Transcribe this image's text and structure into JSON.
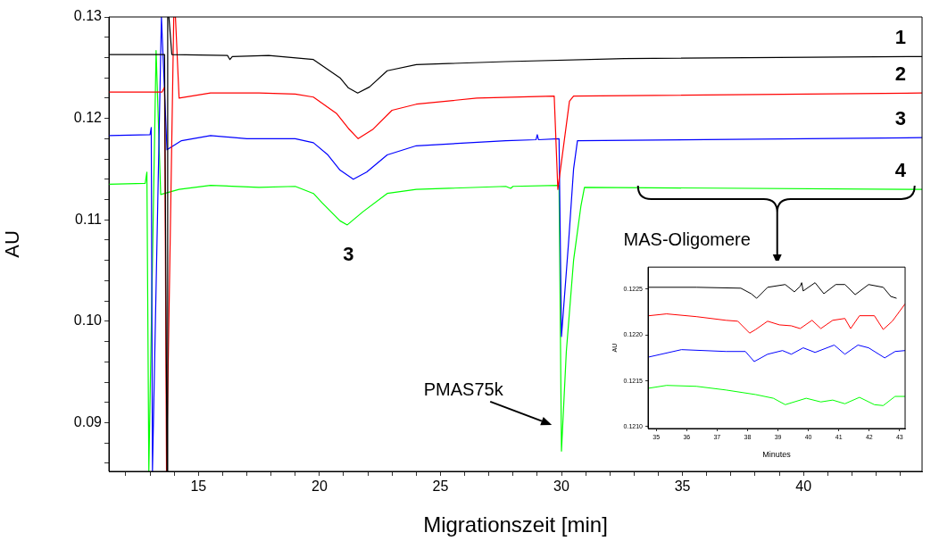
{
  "chart_data": [
    {
      "type": "line",
      "xlabel": "Migrationszeit [min]",
      "ylabel": "AU",
      "xlim": [
        11.3,
        44.9
      ],
      "ylim": [
        0.0852,
        0.13
      ],
      "grid": false,
      "marker": "none",
      "xticks": [
        {
          "value": 12,
          "label": null
        },
        {
          "value": 13,
          "label": null
        },
        {
          "value": 14,
          "label": null
        },
        15,
        {
          "value": 16,
          "label": null
        },
        {
          "value": 17,
          "label": null
        },
        {
          "value": 18,
          "label": null
        },
        {
          "value": 19,
          "label": null
        },
        20,
        {
          "value": 21,
          "label": null
        },
        {
          "value": 22,
          "label": null
        },
        {
          "value": 23,
          "label": null
        },
        {
          "value": 24,
          "label": null
        },
        25,
        {
          "value": 26,
          "label": null
        },
        {
          "value": 27,
          "label": null
        },
        {
          "value": 28,
          "label": null
        },
        {
          "value": 29,
          "label": null
        },
        30,
        {
          "value": 31,
          "label": null
        },
        {
          "value": 32,
          "label": null
        },
        {
          "value": 33,
          "label": null
        },
        {
          "value": 34,
          "label": null
        },
        35,
        {
          "value": 36,
          "label": null
        },
        {
          "value": 37,
          "label": null
        },
        {
          "value": 38,
          "label": null
        },
        {
          "value": 39,
          "label": null
        },
        40,
        {
          "value": 41,
          "label": null
        },
        {
          "value": 42,
          "label": null
        },
        {
          "value": 43,
          "label": null
        },
        {
          "value": 44,
          "label": null
        }
      ],
      "yticks": [
        {
          "value": 0.086,
          "label": null
        },
        {
          "value": 0.088,
          "label": null
        },
        0.09,
        {
          "value": 0.092,
          "label": null
        },
        {
          "value": 0.094,
          "label": null
        },
        {
          "value": 0.096,
          "label": null
        },
        {
          "value": 0.098,
          "label": null
        },
        {
          "value": 0.1,
          "label": "0.10"
        },
        {
          "value": 0.102,
          "label": null
        },
        {
          "value": 0.104,
          "label": null
        },
        {
          "value": 0.106,
          "label": null
        },
        {
          "value": 0.108,
          "label": null
        },
        0.11,
        {
          "value": 0.112,
          "label": null
        },
        {
          "value": 0.114,
          "label": null
        },
        {
          "value": 0.116,
          "label": null
        },
        {
          "value": 0.118,
          "label": null
        },
        0.12,
        {
          "value": 0.122,
          "label": null
        },
        {
          "value": 0.124,
          "label": null
        },
        {
          "value": 0.126,
          "label": null
        },
        {
          "value": 0.128,
          "label": null
        },
        0.13
      ],
      "series": [
        {
          "name": "1",
          "color": "#000000",
          "x": [
            11.3,
            13.6,
            13.7,
            13.73,
            13.78,
            13.9,
            16.2,
            16.3,
            16.4,
            17.9,
            19.75,
            20.85,
            21.2,
            21.58,
            22.07,
            22.8,
            24.0,
            27.7,
            32.6,
            44.9
          ],
          "values": [
            0.1263,
            0.1263,
            0.0852,
            0.13,
            0.13,
            0.1263,
            0.1262,
            0.1258,
            0.1261,
            0.1262,
            0.1258,
            0.124,
            0.123,
            0.1225,
            0.1231,
            0.1247,
            0.1253,
            0.1256,
            0.1259,
            0.1261
          ]
        },
        {
          "name": "2",
          "color": "#ff0000",
          "x": [
            11.3,
            13.5,
            13.6,
            13.68,
            13.98,
            14.05,
            14.2,
            15.5,
            17.5,
            19.0,
            19.75,
            20.7,
            21.2,
            21.6,
            22.2,
            23.0,
            24.0,
            26.5,
            29.7,
            29.85,
            30.33,
            30.5,
            44.9
          ],
          "values": [
            0.1226,
            0.1226,
            0.1231,
            0.0852,
            0.13,
            0.13,
            0.122,
            0.1225,
            0.1225,
            0.1224,
            0.1221,
            0.1205,
            0.119,
            0.118,
            0.1189,
            0.1208,
            0.1214,
            0.122,
            0.1222,
            0.113,
            0.1217,
            0.1222,
            0.1225
          ]
        },
        {
          "name": "3",
          "color": "#0000ff",
          "x": [
            11.3,
            13.0,
            13.05,
            13.1,
            13.47,
            13.7,
            14.3,
            15.5,
            17.0,
            19.0,
            19.75,
            20.35,
            20.85,
            21.4,
            21.95,
            22.8,
            24.0,
            27.7,
            28.95,
            29.0,
            29.05,
            29.9,
            30.0,
            30.3,
            30.5,
            30.66,
            44.9
          ],
          "values": [
            0.1183,
            0.1184,
            0.1191,
            0.0852,
            0.13,
            0.1169,
            0.1178,
            0.1183,
            0.118,
            0.118,
            0.1176,
            0.1164,
            0.1149,
            0.114,
            0.1147,
            0.1164,
            0.1173,
            0.1178,
            0.1179,
            0.1184,
            0.1179,
            0.118,
            0.0985,
            0.108,
            0.115,
            0.1178,
            0.1181
          ]
        },
        {
          "name": "4",
          "color": "#00ff00",
          "x": [
            11.3,
            12.8,
            12.87,
            12.95,
            13.25,
            13.44,
            14.2,
            15.5,
            17.5,
            19.0,
            19.75,
            20.1,
            20.85,
            21.15,
            21.8,
            22.8,
            24.0,
            27.7,
            27.9,
            28.0,
            29.9,
            30.0,
            30.2,
            30.5,
            30.8,
            30.95,
            44.9
          ],
          "values": [
            0.1135,
            0.1136,
            0.1147,
            0.0852,
            0.1267,
            0.1125,
            0.113,
            0.1134,
            0.1132,
            0.1133,
            0.1126,
            0.1117,
            0.1099,
            0.1095,
            0.1108,
            0.1126,
            0.113,
            0.1133,
            0.1131,
            0.1133,
            0.1134,
            0.0872,
            0.097,
            0.106,
            0.1113,
            0.1132,
            0.113
          ]
        }
      ],
      "annotations": [
        {
          "text": "3",
          "x": 21.2,
          "y": 0.1095
        },
        "PMAS75k",
        "MAS-Oligomere"
      ]
    },
    {
      "type": "line",
      "xlabel": "Minutes",
      "ylabel": "AU",
      "xlim": [
        34.73,
        43.18
      ],
      "ylim": [
        0.12098,
        0.12274
      ],
      "grid": false,
      "marker": "none",
      "xticks": [
        35,
        36,
        37,
        38,
        39,
        40,
        41,
        42,
        43
      ],
      "yticks": [
        {
          "value": 0.121,
          "label": "0.1210"
        },
        {
          "value": 0.1215,
          "label": "0.1215"
        },
        {
          "value": 0.122,
          "label": "0.1220"
        },
        {
          "value": 0.1225,
          "label": "0.1225"
        }
      ],
      "series": [
        {
          "color": "#000000",
          "x": [
            34.76,
            36.32,
            37.78,
            38.12,
            38.3,
            38.66,
            39.24,
            39.54,
            39.73,
            39.78,
            39.83,
            40.22,
            40.51,
            40.9,
            41.2,
            41.54,
            41.98,
            42.46,
            42.71,
            42.9
          ],
          "values": [
            0.12252,
            0.12252,
            0.12251,
            0.12245,
            0.1224,
            0.12252,
            0.12255,
            0.12247,
            0.12253,
            0.12257,
            0.12248,
            0.12257,
            0.12245,
            0.12255,
            0.12255,
            0.12244,
            0.12255,
            0.12252,
            0.12242,
            0.1224
          ]
        },
        {
          "color": "#ff0000",
          "x": [
            34.76,
            35.34,
            36.32,
            37.29,
            37.68,
            37.98,
            38.07,
            38.27,
            38.66,
            39.05,
            39.44,
            39.73,
            40.12,
            40.41,
            40.8,
            41.2,
            41.39,
            41.68,
            42.17,
            42.46,
            42.76,
            43.18
          ],
          "values": [
            0.12221,
            0.12223,
            0.1222,
            0.12216,
            0.12215,
            0.12205,
            0.12202,
            0.12206,
            0.12215,
            0.12211,
            0.1221,
            0.12207,
            0.12216,
            0.12207,
            0.12216,
            0.12218,
            0.12207,
            0.12221,
            0.12221,
            0.12206,
            0.12215,
            0.12234
          ]
        },
        {
          "color": "#0000ff",
          "x": [
            34.76,
            35.83,
            37.29,
            37.93,
            38.22,
            38.66,
            39.15,
            39.44,
            39.83,
            40.22,
            40.85,
            41.2,
            41.63,
            41.98,
            42.51,
            42.85,
            43.18
          ],
          "values": [
            0.12176,
            0.12184,
            0.12182,
            0.12182,
            0.12171,
            0.12179,
            0.12183,
            0.12179,
            0.12186,
            0.12181,
            0.12189,
            0.12179,
            0.12189,
            0.12186,
            0.12175,
            0.12182,
            0.12183
          ]
        },
        {
          "color": "#00ff00",
          "x": [
            34.76,
            35.34,
            36.32,
            37.29,
            38.27,
            38.85,
            39.24,
            39.93,
            40.41,
            40.8,
            41.2,
            41.68,
            42.17,
            42.46,
            42.85,
            43.18
          ],
          "values": [
            0.12142,
            0.12145,
            0.12144,
            0.1214,
            0.12135,
            0.12131,
            0.12124,
            0.12131,
            0.12127,
            0.12129,
            0.12125,
            0.12132,
            0.12124,
            0.12123,
            0.12133,
            0.12133
          ]
        }
      ]
    }
  ]
}
